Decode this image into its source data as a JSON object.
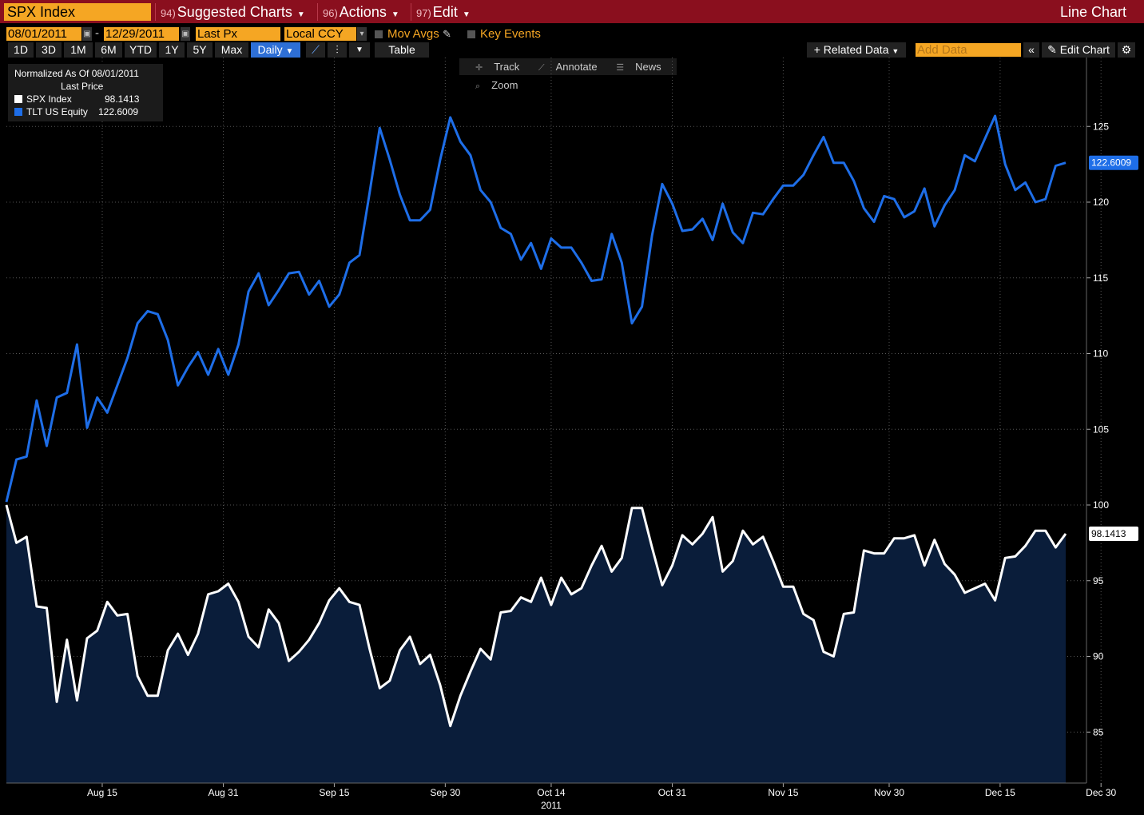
{
  "header": {
    "ticker": "SPX Index",
    "menus": [
      {
        "num": "94)",
        "label": "Suggested Charts"
      },
      {
        "num": "96)",
        "label": "Actions"
      },
      {
        "num": "97)",
        "label": "Edit"
      }
    ],
    "chart_type": "Line Chart"
  },
  "controls": {
    "start_date": "08/01/2011",
    "end_date": "12/29/2011",
    "date_sep": "-",
    "field": "Last Px",
    "currency": "Local CCY",
    "mov_avgs": "Mov Avgs",
    "key_events": "Key Events",
    "periods": [
      "1D",
      "3D",
      "1M",
      "6M",
      "YTD",
      "1Y",
      "5Y",
      "Max"
    ],
    "frequency": "Daily",
    "table": "Table",
    "related_data": "Related Data",
    "add_data_placeholder": "Add Data",
    "edit_chart": "Edit Chart"
  },
  "tools": {
    "track": "Track",
    "annotate": "Annotate",
    "news": "News",
    "zoom": "Zoom"
  },
  "legend": {
    "normalized": "Normalized As Of 08/01/2011",
    "price_type": "Last Price",
    "spx_name": "SPX Index",
    "spx_value": "98.1413",
    "tlt_name": "TLT US Equity",
    "tlt_value": "122.6009"
  },
  "chart_data": {
    "type": "line",
    "ylim": [
      81,
      129
    ],
    "y_ticks": [
      85,
      90,
      95,
      100,
      105,
      110,
      115,
      120,
      125
    ],
    "x_ticks": [
      "Aug 15",
      "Aug 31",
      "Sep 15",
      "Sep 30",
      "Oct 14",
      "Oct 31",
      "Nov 15",
      "Nov 30",
      "Dec 15",
      "Dec 30"
    ],
    "x_tick_positions": [
      9.5,
      21.5,
      32.5,
      43.5,
      54,
      66,
      77,
      87.5,
      98.5,
      108.5
    ],
    "year_label": "2011",
    "colors": {
      "tlt": "#1e6ee8",
      "spx": "#ffffff",
      "spx_fill": "#0a1d3a"
    },
    "series": [
      {
        "name": "TLT US Equity",
        "last_label": "122.6009",
        "values": [
          100.2,
          103.0,
          103.2,
          106.9,
          103.9,
          107.1,
          107.4,
          110.6,
          105.1,
          107.1,
          106.1,
          107.9,
          109.7,
          112.0,
          112.8,
          112.6,
          110.9,
          107.9,
          109.1,
          110.1,
          108.6,
          110.3,
          108.6,
          110.6,
          114.1,
          115.3,
          113.2,
          114.2,
          115.3,
          115.4,
          113.9,
          114.8,
          113.1,
          113.9,
          116.0,
          116.5,
          120.6,
          124.9,
          122.8,
          120.5,
          118.8,
          118.8,
          119.5,
          122.8,
          125.6,
          124.0,
          123.1,
          120.8,
          120.0,
          118.3,
          117.9,
          116.2,
          117.3,
          115.6,
          117.6,
          117.0,
          117.0,
          116.0,
          114.8,
          114.9,
          117.9,
          116.0,
          112.0,
          113.1,
          117.8,
          121.2,
          119.9,
          118.1,
          118.2,
          118.9,
          117.5,
          119.9,
          118.0,
          117.3,
          119.3,
          119.2,
          120.2,
          121.1,
          121.1,
          121.8,
          123.1,
          124.3,
          122.6,
          122.6,
          121.4,
          119.6,
          118.7,
          120.4,
          120.2,
          119.0,
          119.4,
          120.9,
          118.4,
          119.8,
          120.8,
          123.1,
          122.7,
          124.2,
          125.7,
          122.5,
          120.8,
          121.3,
          120.0,
          120.2,
          122.4,
          122.6
        ]
      },
      {
        "name": "SPX Index",
        "last_label": "98.1413",
        "values": [
          100.0,
          97.5,
          97.9,
          93.3,
          93.2,
          87.0,
          91.1,
          87.1,
          91.2,
          91.7,
          93.6,
          92.7,
          92.8,
          88.7,
          87.4,
          87.4,
          90.4,
          91.5,
          90.1,
          91.5,
          94.1,
          94.3,
          94.8,
          93.6,
          91.3,
          90.6,
          93.1,
          92.2,
          89.7,
          90.3,
          91.1,
          92.2,
          93.7,
          94.5,
          93.6,
          93.4,
          90.5,
          87.9,
          88.4,
          90.4,
          91.3,
          89.5,
          90.1,
          88.1,
          85.4,
          87.4,
          89.0,
          90.5,
          89.8,
          92.9,
          93.0,
          93.9,
          93.6,
          95.2,
          93.4,
          95.2,
          94.1,
          94.5,
          96.0,
          97.3,
          95.6,
          96.5,
          99.8,
          99.8,
          97.2,
          94.7,
          96.0,
          98.0,
          97.4,
          98.1,
          99.2,
          95.6,
          96.3,
          98.3,
          97.4,
          97.9,
          96.3,
          94.6,
          94.6,
          92.8,
          92.4,
          90.3,
          90.0,
          92.8,
          92.9,
          97.0,
          96.8,
          96.8,
          97.8,
          97.8,
          98.0,
          96.0,
          97.7,
          96.1,
          95.4,
          94.2,
          94.5,
          94.8,
          93.7,
          96.5,
          96.6,
          97.3,
          98.3,
          98.3,
          97.2,
          98.1
        ]
      }
    ]
  }
}
